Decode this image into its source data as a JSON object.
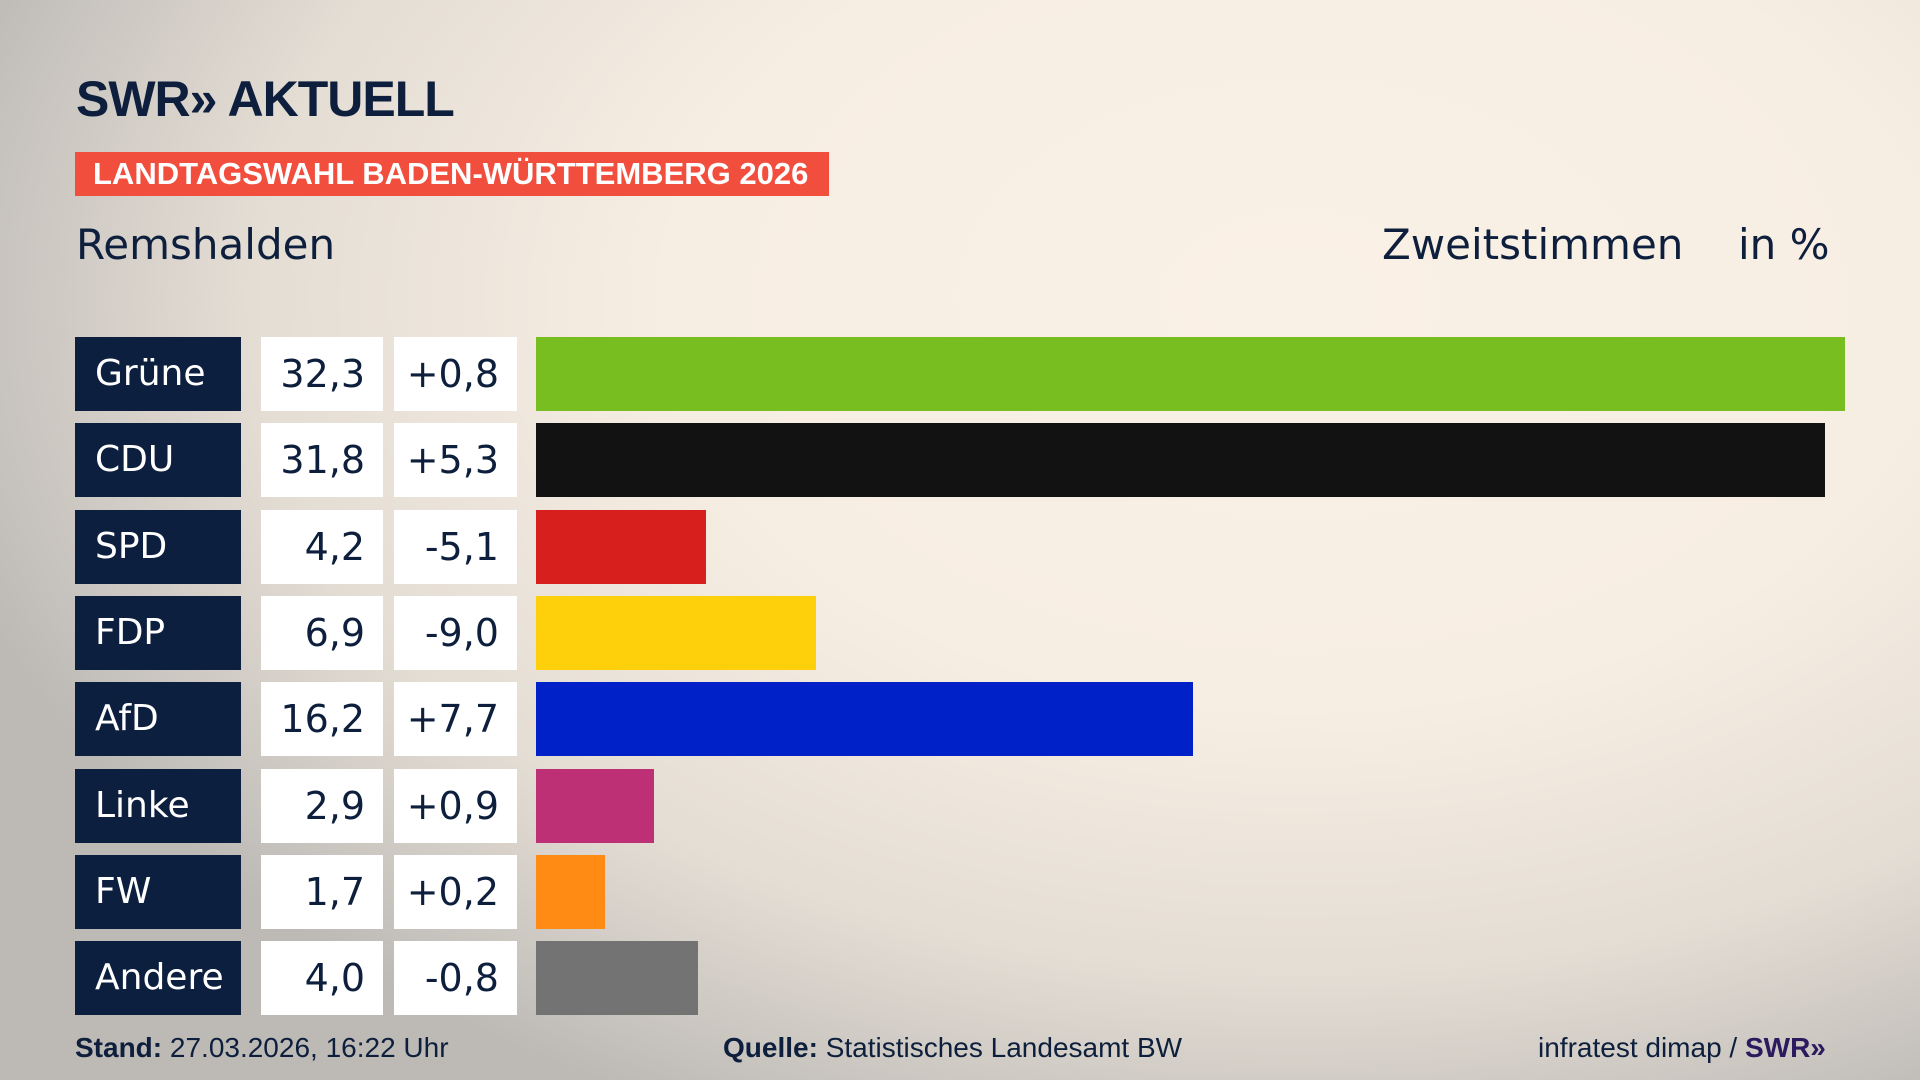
{
  "header": {
    "logo": "SWR» AKTUELL",
    "banner": "LANDTAGSWAHL BADEN-WÜRTTEMBERG 2026",
    "region": "Remshalden",
    "vote_type": "Zweitstimmen",
    "unit": "in %"
  },
  "chart_data": {
    "type": "bar",
    "orientation": "horizontal",
    "categories": [
      "Grüne",
      "CDU",
      "SPD",
      "FDP",
      "AfD",
      "Linke",
      "FW",
      "Andere"
    ],
    "values": [
      32.3,
      31.8,
      4.2,
      6.9,
      16.2,
      2.9,
      1.7,
      4.0
    ],
    "value_labels": [
      "32,3",
      "31,8",
      "4,2",
      "6,9",
      "16,2",
      "2,9",
      "1,7",
      "4,0"
    ],
    "changes": [
      "+0,8",
      "+5,3",
      "-5,1",
      "-9,0",
      "+7,7",
      "+0,9",
      "+0,2",
      "-0,8"
    ],
    "colors": [
      "#78be20",
      "#121212",
      "#d7201e",
      "#fdd00b",
      "#0020c8",
      "#bd3075",
      "#ff8a14",
      "#737373"
    ],
    "grid": false
  },
  "footer": {
    "stand_label": "Stand:",
    "stand_value": "27.03.2026, 16:22 Uhr",
    "source_label": "Quelle:",
    "source_value": "Statistisches Landesamt BW",
    "credit": "infratest dimap /",
    "credit_logo": "SWR»"
  }
}
